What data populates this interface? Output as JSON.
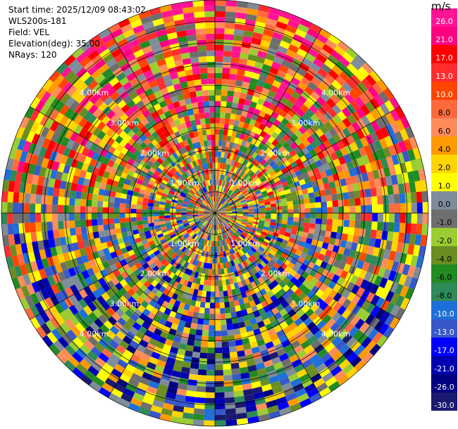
{
  "info": {
    "start_time": "Start time: 2025/12/09 08:43:02",
    "instrument": "WLS200s-181",
    "field": "Field: VEL",
    "elevation": "Elevation(deg): 35.00",
    "nrays": "NRays: 120"
  },
  "colorbar": {
    "unit": "m/s",
    "ticks": [
      "26.0",
      "21.0",
      "17.0",
      "13.0",
      "10.0",
      "8.0",
      "6.0",
      "4.0",
      "2.0",
      "1.0",
      "0.0",
      "-1.0",
      "-2.0",
      "-4.0",
      "-6.0",
      "-8.0",
      "-10.0",
      "-13.0",
      "-17.0",
      "-21.0",
      "-26.0",
      "-30.0"
    ],
    "colors": [
      "#ff1493",
      "#ff0080",
      "#ff0000",
      "#ff2d2d",
      "#ff4500",
      "#ff6a3d",
      "#ff8c5a",
      "#ff9a00",
      "#ffd400",
      "#ffff00",
      "#7f8c99",
      "#6e6e6e",
      "#9acd32",
      "#6b8e23",
      "#228b22",
      "#2e8b57",
      "#1e6fd9",
      "#3658c9",
      "#0000ff",
      "#0000b0",
      "#000080",
      "#191970"
    ]
  },
  "chart_data": {
    "type": "heatmap",
    "projection": "polar",
    "field": "VEL",
    "nrays": 120,
    "range_rings_km": [
      {
        "label": "1.00km"
      },
      {
        "label": "2.00km"
      },
      {
        "label": "3.00km"
      },
      {
        "label": "4.00km"
      }
    ],
    "notes": "Radial velocity PPI with 120 rays; cell colors mapped to colorbar bins."
  }
}
